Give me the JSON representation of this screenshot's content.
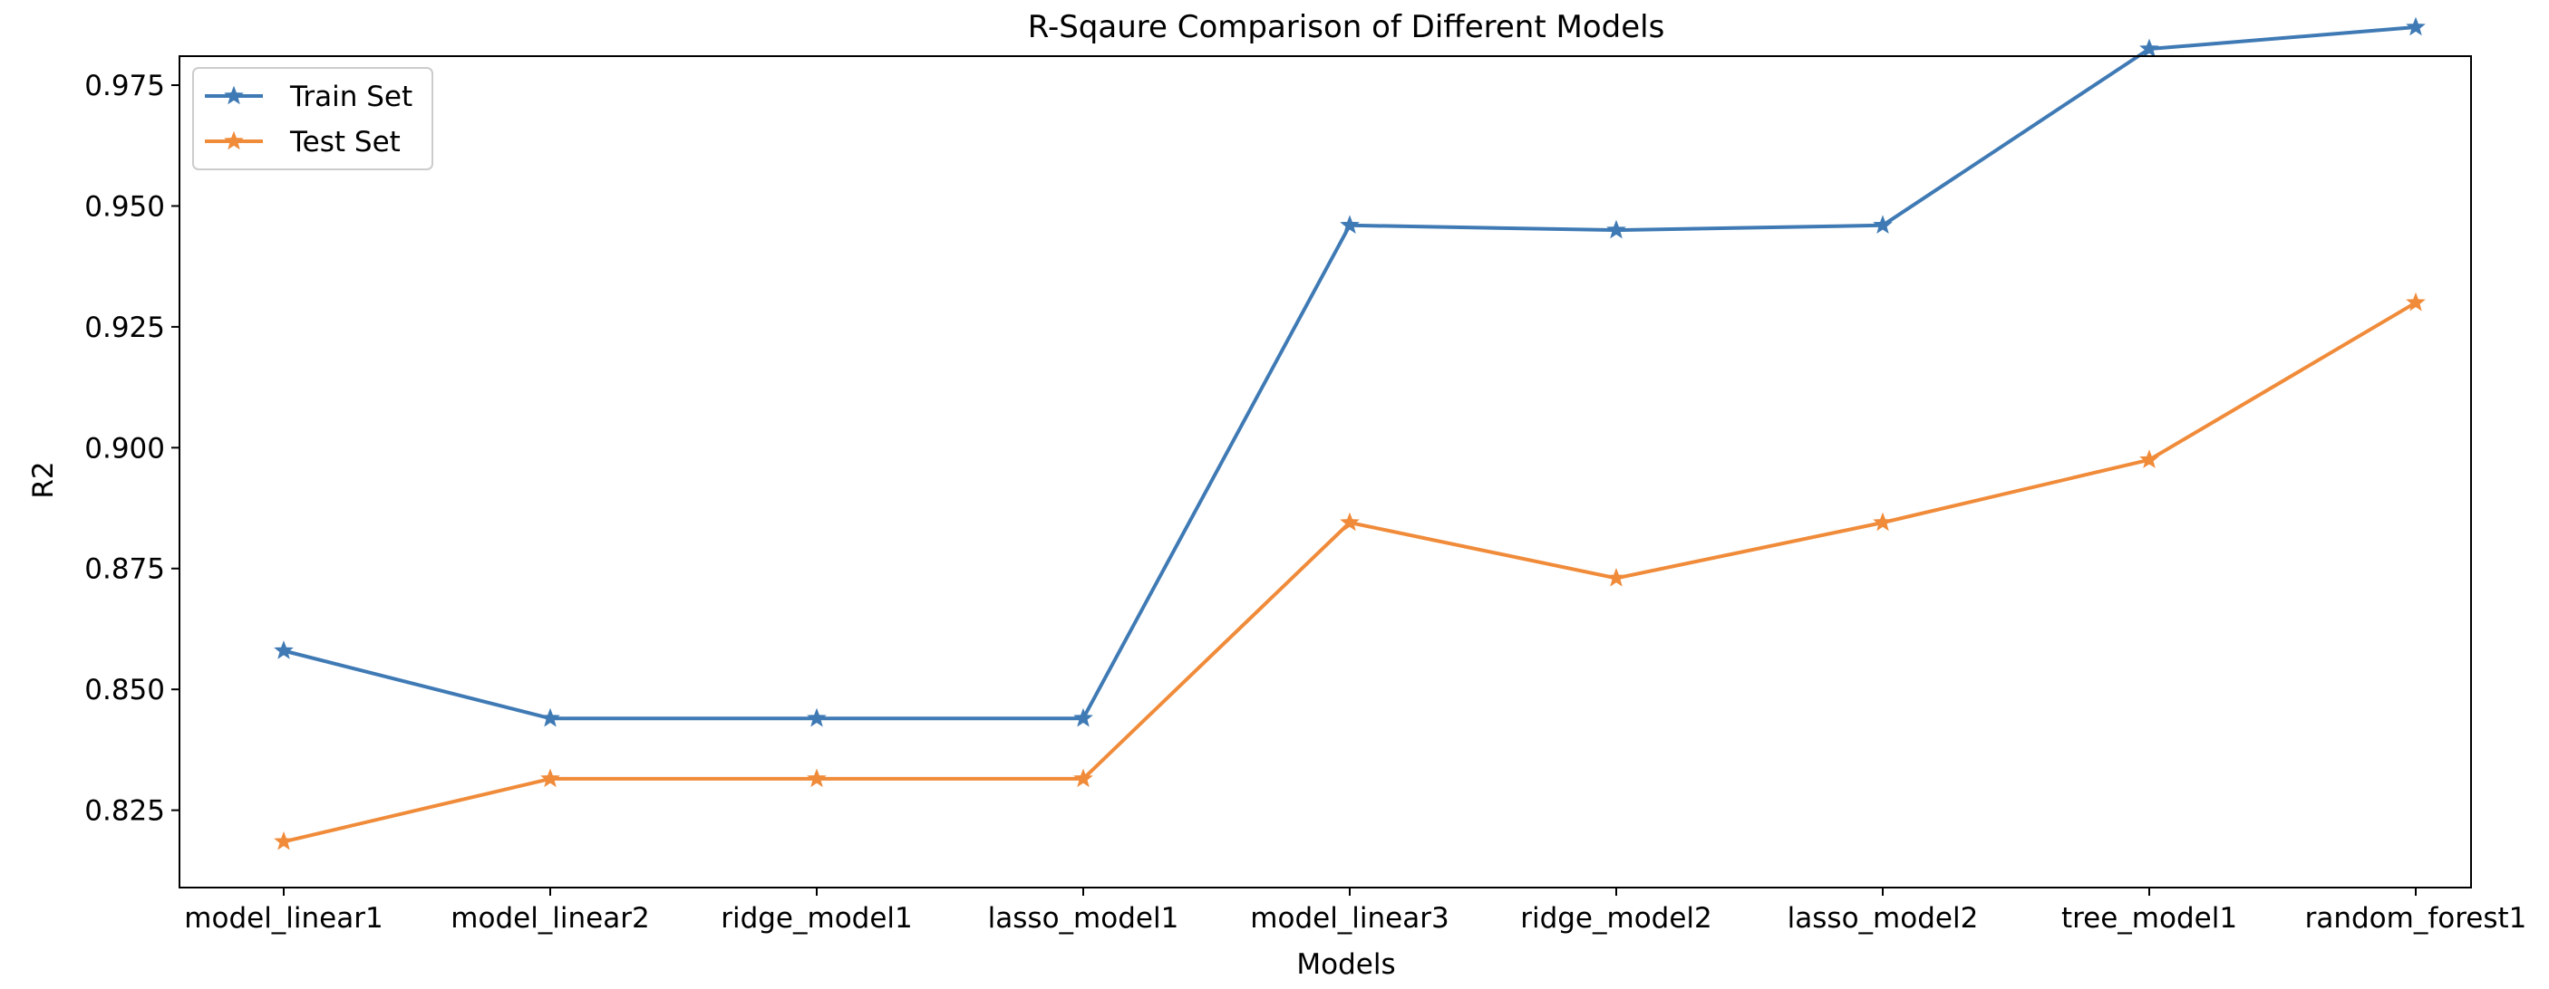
{
  "chart_data": {
    "type": "line",
    "title": "R-Sqaure Comparison of Different Models",
    "xlabel": "Models",
    "ylabel": "R2",
    "categories": [
      "model_linear1",
      "model_linear2",
      "ridge_model1",
      "lasso_model1",
      "model_linear3",
      "ridge_model2",
      "lasso_model2",
      "tree_model1",
      "random_forest1"
    ],
    "ylim": [
      0.809,
      0.981
    ],
    "yticks": [
      "0.825",
      "0.850",
      "0.875",
      "0.900",
      "0.925",
      "0.950",
      "0.975"
    ],
    "grid": false,
    "legend_position": "top-left",
    "marker": "star",
    "series": [
      {
        "name": "Train Set",
        "color": "#3f7ab5",
        "values": [
          0.858,
          0.844,
          0.844,
          0.844,
          0.946,
          0.945,
          0.946,
          0.9825,
          0.987
        ]
      },
      {
        "name": "Test Set",
        "color": "#f08b3a",
        "values": [
          0.8185,
          0.8315,
          0.8315,
          0.8315,
          0.8845,
          0.873,
          0.8845,
          0.8975,
          0.93
        ]
      }
    ]
  }
}
